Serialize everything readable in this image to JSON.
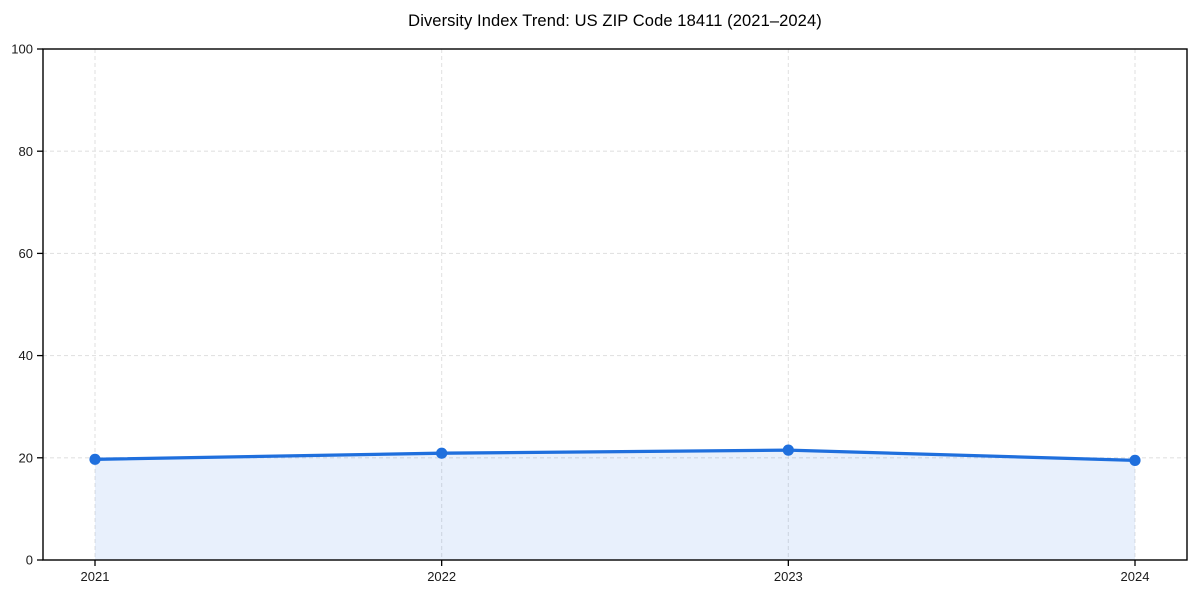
{
  "chart_data": {
    "type": "area",
    "title": "Diversity Index Trend: US ZIP Code 18411 (2021–2024)",
    "x": [
      2021,
      2022,
      2023,
      2024
    ],
    "series": [
      {
        "name": "Diversity Index",
        "values": [
          19.7,
          20.9,
          21.5,
          19.5
        ]
      }
    ],
    "xlabel": "",
    "ylabel": "",
    "xticks": [
      2021,
      2022,
      2023,
      2024
    ],
    "yticks": [
      0,
      20,
      40,
      60,
      80,
      100
    ],
    "xlim": [
      2020.85,
      2024.15
    ],
    "ylim": [
      0,
      100
    ],
    "grid": true,
    "grid_style": "dashed",
    "legend_position": "none",
    "marker": "circle",
    "colors": {
      "line": "#1f6fdd",
      "marker": "#1f6fdd",
      "fill": "rgba(31,111,221,0.10)",
      "grid": "#dedede",
      "axis": "#000000",
      "tick_label": "#1a1a1a",
      "title": "#000000",
      "background": "#ffffff"
    }
  }
}
